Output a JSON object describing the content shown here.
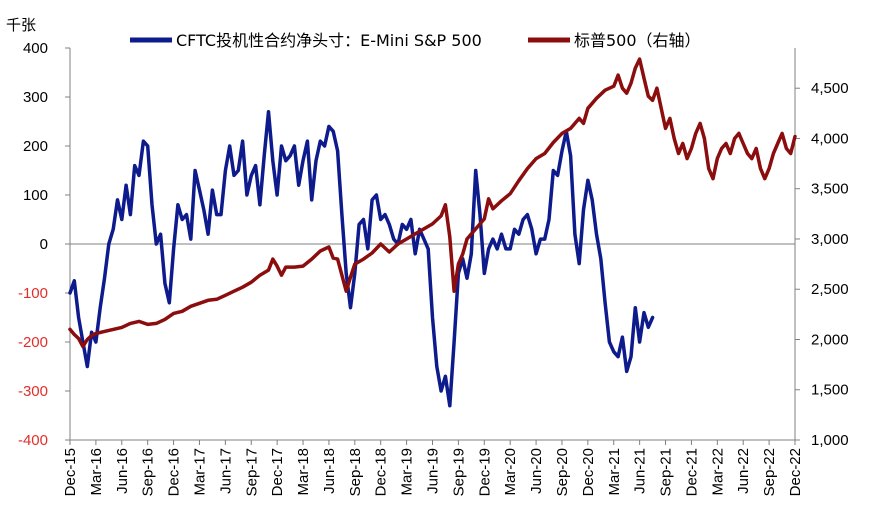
{
  "chart_data": {
    "type": "line",
    "unit_left": "千张",
    "legend": [
      "CFTC投机性合约净头寸：E-Mini S&P 500",
      "标普500（右轴）"
    ],
    "left_axis": {
      "min": -400,
      "max": 400,
      "ticks": [
        400,
        300,
        200,
        100,
        0,
        -100,
        -200,
        -300,
        -400
      ],
      "tick_labels": [
        "400",
        "300",
        "200",
        "100",
        "0",
        "-100",
        "-200",
        "-300",
        "-400"
      ]
    },
    "right_axis": {
      "min": 1000,
      "max": 4900,
      "ticks": [
        4500,
        4000,
        3500,
        3000,
        2500,
        2000,
        1500,
        1000
      ],
      "tick_labels": [
        "4,500",
        "4,000",
        "3,500",
        "3,000",
        "2,500",
        "2,000",
        "1,500",
        "1,000"
      ]
    },
    "x_range": [
      0,
      84
    ],
    "x_ticks": [
      0,
      3,
      6,
      9,
      12,
      15,
      18,
      21,
      24,
      27,
      30,
      33,
      36,
      39,
      42,
      45,
      48,
      51,
      54,
      57,
      60,
      63,
      66,
      69,
      72,
      75,
      78,
      81,
      84
    ],
    "x_tick_labels": [
      "Dec-15",
      "Mar-16",
      "Jun-16",
      "Sep-16",
      "Dec-16",
      "Mar-17",
      "Jun-17",
      "Sep-17",
      "Dec-17",
      "Mar-18",
      "Jun-18",
      "Sep-18",
      "Dec-18",
      "Mar-19",
      "Jun-19",
      "Sep-19",
      "Dec-19",
      "Mar-20",
      "Jun-20",
      "Sep-20",
      "Dec-20",
      "Mar-21",
      "Jun-21",
      "Sep-21",
      "Dec-21",
      "Mar-22",
      "Jun-22",
      "Sep-22",
      "Dec-22"
    ],
    "series": [
      {
        "name": "CFTC投机性合约净头寸：E-Mini S&P 500",
        "color": "#0d1b8c",
        "axis": "left",
        "points": [
          [
            0,
            -100
          ],
          [
            0.5,
            -75
          ],
          [
            1,
            -150
          ],
          [
            1.5,
            -200
          ],
          [
            2,
            -250
          ],
          [
            2.5,
            -180
          ],
          [
            3,
            -200
          ],
          [
            3.5,
            -130
          ],
          [
            4,
            -70
          ],
          [
            4.5,
            0
          ],
          [
            5,
            30
          ],
          [
            5.5,
            90
          ],
          [
            6,
            50
          ],
          [
            6.5,
            120
          ],
          [
            7,
            60
          ],
          [
            7.5,
            160
          ],
          [
            8,
            140
          ],
          [
            8.5,
            210
          ],
          [
            9,
            200
          ],
          [
            9.5,
            80
          ],
          [
            10,
            0
          ],
          [
            10.5,
            20
          ],
          [
            11,
            -80
          ],
          [
            11.5,
            -120
          ],
          [
            12,
            -10
          ],
          [
            12.5,
            80
          ],
          [
            13,
            50
          ],
          [
            13.5,
            60
          ],
          [
            14,
            10
          ],
          [
            14.5,
            150
          ],
          [
            15,
            110
          ],
          [
            15.5,
            70
          ],
          [
            16,
            20
          ],
          [
            16.5,
            110
          ],
          [
            17,
            60
          ],
          [
            17.5,
            60
          ],
          [
            18,
            150
          ],
          [
            18.5,
            200
          ],
          [
            19,
            140
          ],
          [
            19.5,
            150
          ],
          [
            20,
            210
          ],
          [
            20.5,
            100
          ],
          [
            21,
            140
          ],
          [
            21.5,
            160
          ],
          [
            22,
            80
          ],
          [
            22.5,
            180
          ],
          [
            23,
            270
          ],
          [
            23.5,
            170
          ],
          [
            24,
            100
          ],
          [
            24.5,
            200
          ],
          [
            25,
            170
          ],
          [
            25.5,
            180
          ],
          [
            26,
            200
          ],
          [
            26.5,
            120
          ],
          [
            27,
            170
          ],
          [
            27.5,
            210
          ],
          [
            28,
            90
          ],
          [
            28.5,
            170
          ],
          [
            29,
            210
          ],
          [
            29.5,
            200
          ],
          [
            30,
            240
          ],
          [
            30.5,
            230
          ],
          [
            31,
            190
          ],
          [
            31.5,
            60
          ],
          [
            32,
            -60
          ],
          [
            32.5,
            -130
          ],
          [
            33,
            -60
          ],
          [
            33.5,
            40
          ],
          [
            34,
            50
          ],
          [
            34.5,
            -10
          ],
          [
            35,
            90
          ],
          [
            35.5,
            100
          ],
          [
            36,
            50
          ],
          [
            36.5,
            60
          ],
          [
            37,
            40
          ],
          [
            37.5,
            10
          ],
          [
            38,
            0
          ],
          [
            38.5,
            40
          ],
          [
            39,
            30
          ],
          [
            39.5,
            50
          ],
          [
            40,
            -20
          ],
          [
            40.5,
            30
          ],
          [
            41,
            10
          ],
          [
            41.5,
            -10
          ],
          [
            42,
            -150
          ],
          [
            42.5,
            -250
          ],
          [
            43,
            -300
          ],
          [
            43.5,
            -270
          ],
          [
            44,
            -330
          ],
          [
            44.5,
            -200
          ],
          [
            45,
            -60
          ],
          [
            45.5,
            -30
          ],
          [
            46,
            -70
          ],
          [
            46.5,
            -20
          ],
          [
            47,
            150
          ],
          [
            47.5,
            60
          ],
          [
            48,
            -60
          ],
          [
            48.5,
            -10
          ],
          [
            49,
            10
          ],
          [
            49.5,
            -10
          ],
          [
            50,
            20
          ],
          [
            50.5,
            -10
          ],
          [
            51,
            -10
          ],
          [
            51.5,
            30
          ],
          [
            52,
            20
          ],
          [
            52.5,
            50
          ],
          [
            53,
            60
          ],
          [
            53.5,
            30
          ],
          [
            54,
            -20
          ],
          [
            54.5,
            10
          ],
          [
            55,
            10
          ],
          [
            55.5,
            50
          ],
          [
            56,
            150
          ],
          [
            56.5,
            140
          ],
          [
            57,
            190
          ],
          [
            57.5,
            230
          ],
          [
            58,
            180
          ],
          [
            58.5,
            20
          ],
          [
            59,
            -40
          ],
          [
            59.5,
            70
          ],
          [
            60,
            130
          ],
          [
            60.5,
            90
          ],
          [
            61,
            20
          ],
          [
            61.5,
            -30
          ],
          [
            62,
            -120
          ],
          [
            62.5,
            -200
          ],
          [
            63,
            -220
          ],
          [
            63.5,
            -230
          ],
          [
            64,
            -190
          ],
          [
            64.5,
            -260
          ],
          [
            65,
            -230
          ],
          [
            65.5,
            -130
          ],
          [
            66,
            -200
          ],
          [
            66.5,
            -140
          ],
          [
            67,
            -170
          ],
          [
            67.5,
            -150
          ]
        ]
      },
      {
        "name": "标普500（右轴）",
        "color": "#8b0d0d",
        "axis": "right",
        "points": [
          [
            0,
            2100
          ],
          [
            0.5,
            2050
          ],
          [
            1,
            2010
          ],
          [
            1.5,
            1930
          ],
          [
            2,
            2000
          ],
          [
            2.5,
            2040
          ],
          [
            3,
            2060
          ],
          [
            4,
            2080
          ],
          [
            5,
            2100
          ],
          [
            6,
            2120
          ],
          [
            7,
            2160
          ],
          [
            8,
            2180
          ],
          [
            9,
            2150
          ],
          [
            10,
            2160
          ],
          [
            11,
            2200
          ],
          [
            12,
            2260
          ],
          [
            13,
            2280
          ],
          [
            14,
            2330
          ],
          [
            15,
            2360
          ],
          [
            16,
            2390
          ],
          [
            17,
            2400
          ],
          [
            18,
            2440
          ],
          [
            19,
            2480
          ],
          [
            20,
            2520
          ],
          [
            21,
            2570
          ],
          [
            22,
            2640
          ],
          [
            23,
            2690
          ],
          [
            23.5,
            2800
          ],
          [
            24,
            2730
          ],
          [
            24.5,
            2640
          ],
          [
            25,
            2720
          ],
          [
            26,
            2720
          ],
          [
            27,
            2730
          ],
          [
            28,
            2800
          ],
          [
            29,
            2880
          ],
          [
            30,
            2920
          ],
          [
            30.5,
            2810
          ],
          [
            31,
            2800
          ],
          [
            31.5,
            2640
          ],
          [
            32,
            2480
          ],
          [
            32.5,
            2620
          ],
          [
            33,
            2750
          ],
          [
            34,
            2800
          ],
          [
            35,
            2860
          ],
          [
            36,
            2950
          ],
          [
            37,
            2870
          ],
          [
            38,
            2950
          ],
          [
            39,
            3000
          ],
          [
            40,
            3050
          ],
          [
            41,
            3100
          ],
          [
            42,
            3150
          ],
          [
            43,
            3230
          ],
          [
            43.5,
            3340
          ],
          [
            44,
            3020
          ],
          [
            44.5,
            2480
          ],
          [
            45,
            2750
          ],
          [
            45.5,
            2850
          ],
          [
            46,
            3000
          ],
          [
            47,
            3100
          ],
          [
            48,
            3200
          ],
          [
            48.5,
            3400
          ],
          [
            49,
            3300
          ],
          [
            50,
            3380
          ],
          [
            51,
            3450
          ],
          [
            52,
            3580
          ],
          [
            53,
            3700
          ],
          [
            54,
            3800
          ],
          [
            55,
            3850
          ],
          [
            56,
            3960
          ],
          [
            57,
            4050
          ],
          [
            58,
            4100
          ],
          [
            59,
            4200
          ],
          [
            59.5,
            4150
          ],
          [
            60,
            4300
          ],
          [
            61,
            4400
          ],
          [
            62,
            4480
          ],
          [
            63,
            4520
          ],
          [
            63.5,
            4630
          ],
          [
            64,
            4500
          ],
          [
            64.5,
            4450
          ],
          [
            65,
            4550
          ],
          [
            65.5,
            4700
          ],
          [
            66,
            4790
          ],
          [
            66.5,
            4600
          ],
          [
            67,
            4420
          ],
          [
            67.5,
            4380
          ],
          [
            68,
            4500
          ],
          [
            68.5,
            4300
          ],
          [
            69,
            4100
          ],
          [
            69.5,
            4200
          ],
          [
            70,
            4000
          ],
          [
            70.5,
            3850
          ],
          [
            71,
            3950
          ],
          [
            71.5,
            3800
          ],
          [
            72,
            3900
          ],
          [
            72.5,
            4050
          ],
          [
            73,
            4150
          ],
          [
            73.5,
            4000
          ],
          [
            74,
            3700
          ],
          [
            74.5,
            3600
          ],
          [
            75,
            3800
          ],
          [
            75.5,
            3900
          ],
          [
            76,
            3950
          ],
          [
            76.5,
            3850
          ],
          [
            77,
            4000
          ],
          [
            77.5,
            4050
          ],
          [
            78,
            3950
          ],
          [
            78.5,
            3850
          ],
          [
            79,
            3800
          ],
          [
            79.5,
            3900
          ],
          [
            80,
            3700
          ],
          [
            80.5,
            3600
          ],
          [
            81,
            3700
          ],
          [
            81.5,
            3850
          ],
          [
            82,
            3950
          ],
          [
            82.5,
            4050
          ],
          [
            83,
            3900
          ],
          [
            83.5,
            3850
          ],
          [
            84,
            4020
          ]
        ]
      }
    ]
  }
}
